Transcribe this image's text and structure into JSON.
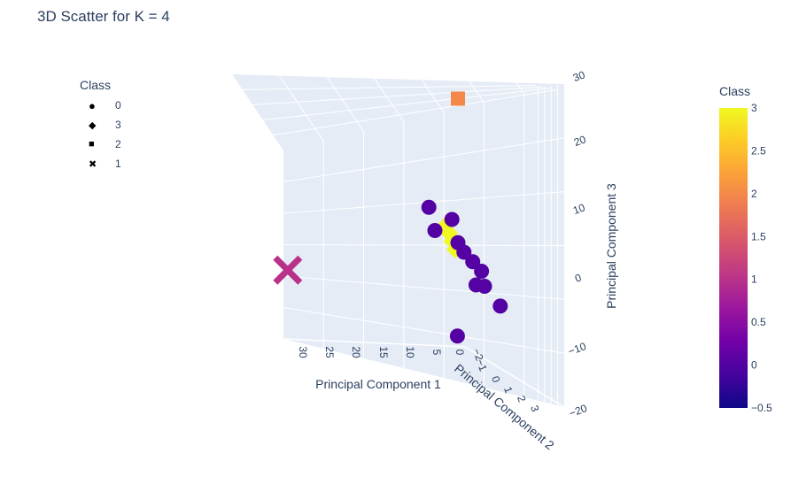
{
  "title": "3D Scatter for K = 4",
  "legend": {
    "title": "Class",
    "items": [
      {
        "symbol": "circle",
        "label": "0"
      },
      {
        "symbol": "diamond",
        "label": "3"
      },
      {
        "symbol": "square",
        "label": "2"
      },
      {
        "symbol": "x",
        "label": "1"
      }
    ]
  },
  "colorbar": {
    "title": "Class",
    "ticks": [
      "3",
      "2.5",
      "2",
      "1.5",
      "1",
      "0.5",
      "0",
      "−0.5"
    ],
    "range": [
      -0.5,
      3
    ],
    "colors": [
      "#0d0887",
      "#46039f",
      "#7201a8",
      "#9c179e",
      "#bd3786",
      "#d8576b",
      "#ed7953",
      "#fb9f3a",
      "#fdca26",
      "#f0f921"
    ]
  },
  "chart_data": {
    "type": "scatter",
    "title": "3D Scatter for K = 4",
    "xlabel": "Principal Component 1",
    "ylabel": "Principal Component 2",
    "zlabel": "Principal Component 3",
    "x_ticks": [
      "30",
      "25",
      "20",
      "15",
      "10",
      "5",
      "0"
    ],
    "y_ticks": [
      "−2",
      "−1",
      "0",
      "1",
      "2",
      "3"
    ],
    "z_ticks": [
      "30",
      "20",
      "10",
      "0",
      "−10",
      "−20"
    ],
    "series": [
      {
        "name": "0",
        "symbol": "circle",
        "color": "#5402a3",
        "points": [
          [
            -1,
            -3,
            9
          ],
          [
            -1,
            -1,
            8
          ],
          [
            0,
            -2,
            6
          ],
          [
            0,
            0,
            5
          ],
          [
            1,
            1,
            4
          ],
          [
            1.5,
            2,
            3
          ],
          [
            2,
            3,
            2
          ],
          [
            2.5,
            3.5,
            0
          ],
          [
            3,
            3,
            0
          ],
          [
            -1,
            3.2,
            -3
          ],
          [
            -2,
            -1,
            -9
          ]
        ]
      },
      {
        "name": "3",
        "symbol": "diamond",
        "color": "#f0f921",
        "points": [
          [
            -1,
            -1.5,
            7
          ],
          [
            -0.5,
            -1,
            6
          ],
          [
            0,
            -0.5,
            5
          ],
          [
            0.5,
            0,
            4
          ]
        ]
      },
      {
        "name": "2",
        "symbol": "square",
        "color": "#f48849",
        "points": [
          [
            0,
            0,
            26
          ]
        ]
      },
      {
        "name": "1",
        "symbol": "x",
        "color": "#b83289",
        "points": [
          [
            31,
            0,
            1
          ]
        ]
      }
    ]
  }
}
